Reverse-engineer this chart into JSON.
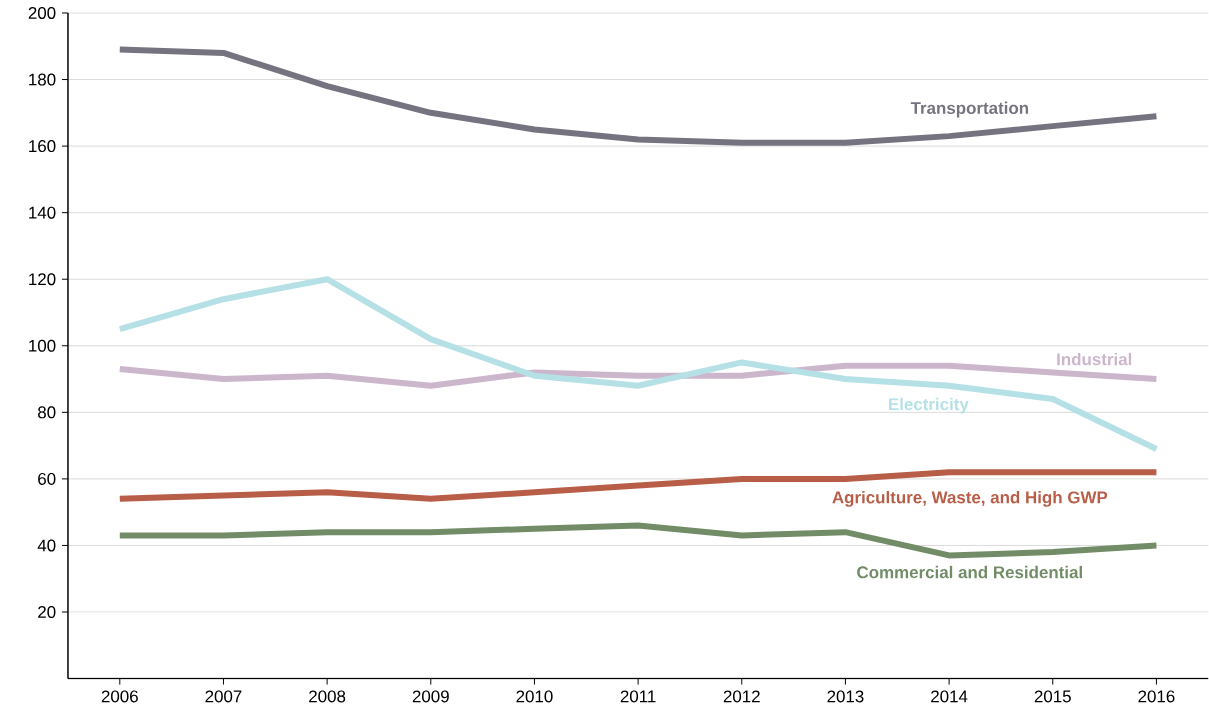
{
  "chart_data": {
    "type": "line",
    "categories": [
      "2006",
      "2007",
      "2008",
      "2009",
      "2010",
      "2011",
      "2012",
      "2013",
      "2014",
      "2015",
      "2016"
    ],
    "series": [
      {
        "name": "Transportation",
        "color": "#74737f",
        "values": [
          189,
          188,
          178,
          170,
          165,
          162,
          161,
          161,
          163,
          166,
          169
        ]
      },
      {
        "name": "Industrial",
        "color": "#cbb6cc",
        "values": [
          93,
          90,
          91,
          88,
          92,
          91,
          91,
          94,
          94,
          92,
          90
        ]
      },
      {
        "name": "Electricity",
        "color": "#b5e1e6",
        "values": [
          105,
          114,
          120,
          102,
          91,
          88,
          95,
          90,
          88,
          84,
          69
        ]
      },
      {
        "name": "Agriculture, Waste, and High GWP",
        "color": "#b85e48",
        "values": [
          54,
          55,
          56,
          54,
          56,
          58,
          60,
          60,
          62,
          62,
          62
        ]
      },
      {
        "name": "Commercial and Residential",
        "color": "#728c67",
        "values": [
          43,
          43,
          44,
          44,
          45,
          46,
          43,
          44,
          37,
          38,
          40
        ]
      }
    ],
    "ylim": [
      0,
      200
    ],
    "yticks": [
      20,
      40,
      60,
      80,
      100,
      120,
      140,
      160,
      180,
      200
    ],
    "grid": "y",
    "legend": false,
    "marker": "none",
    "line_style": "solid"
  }
}
